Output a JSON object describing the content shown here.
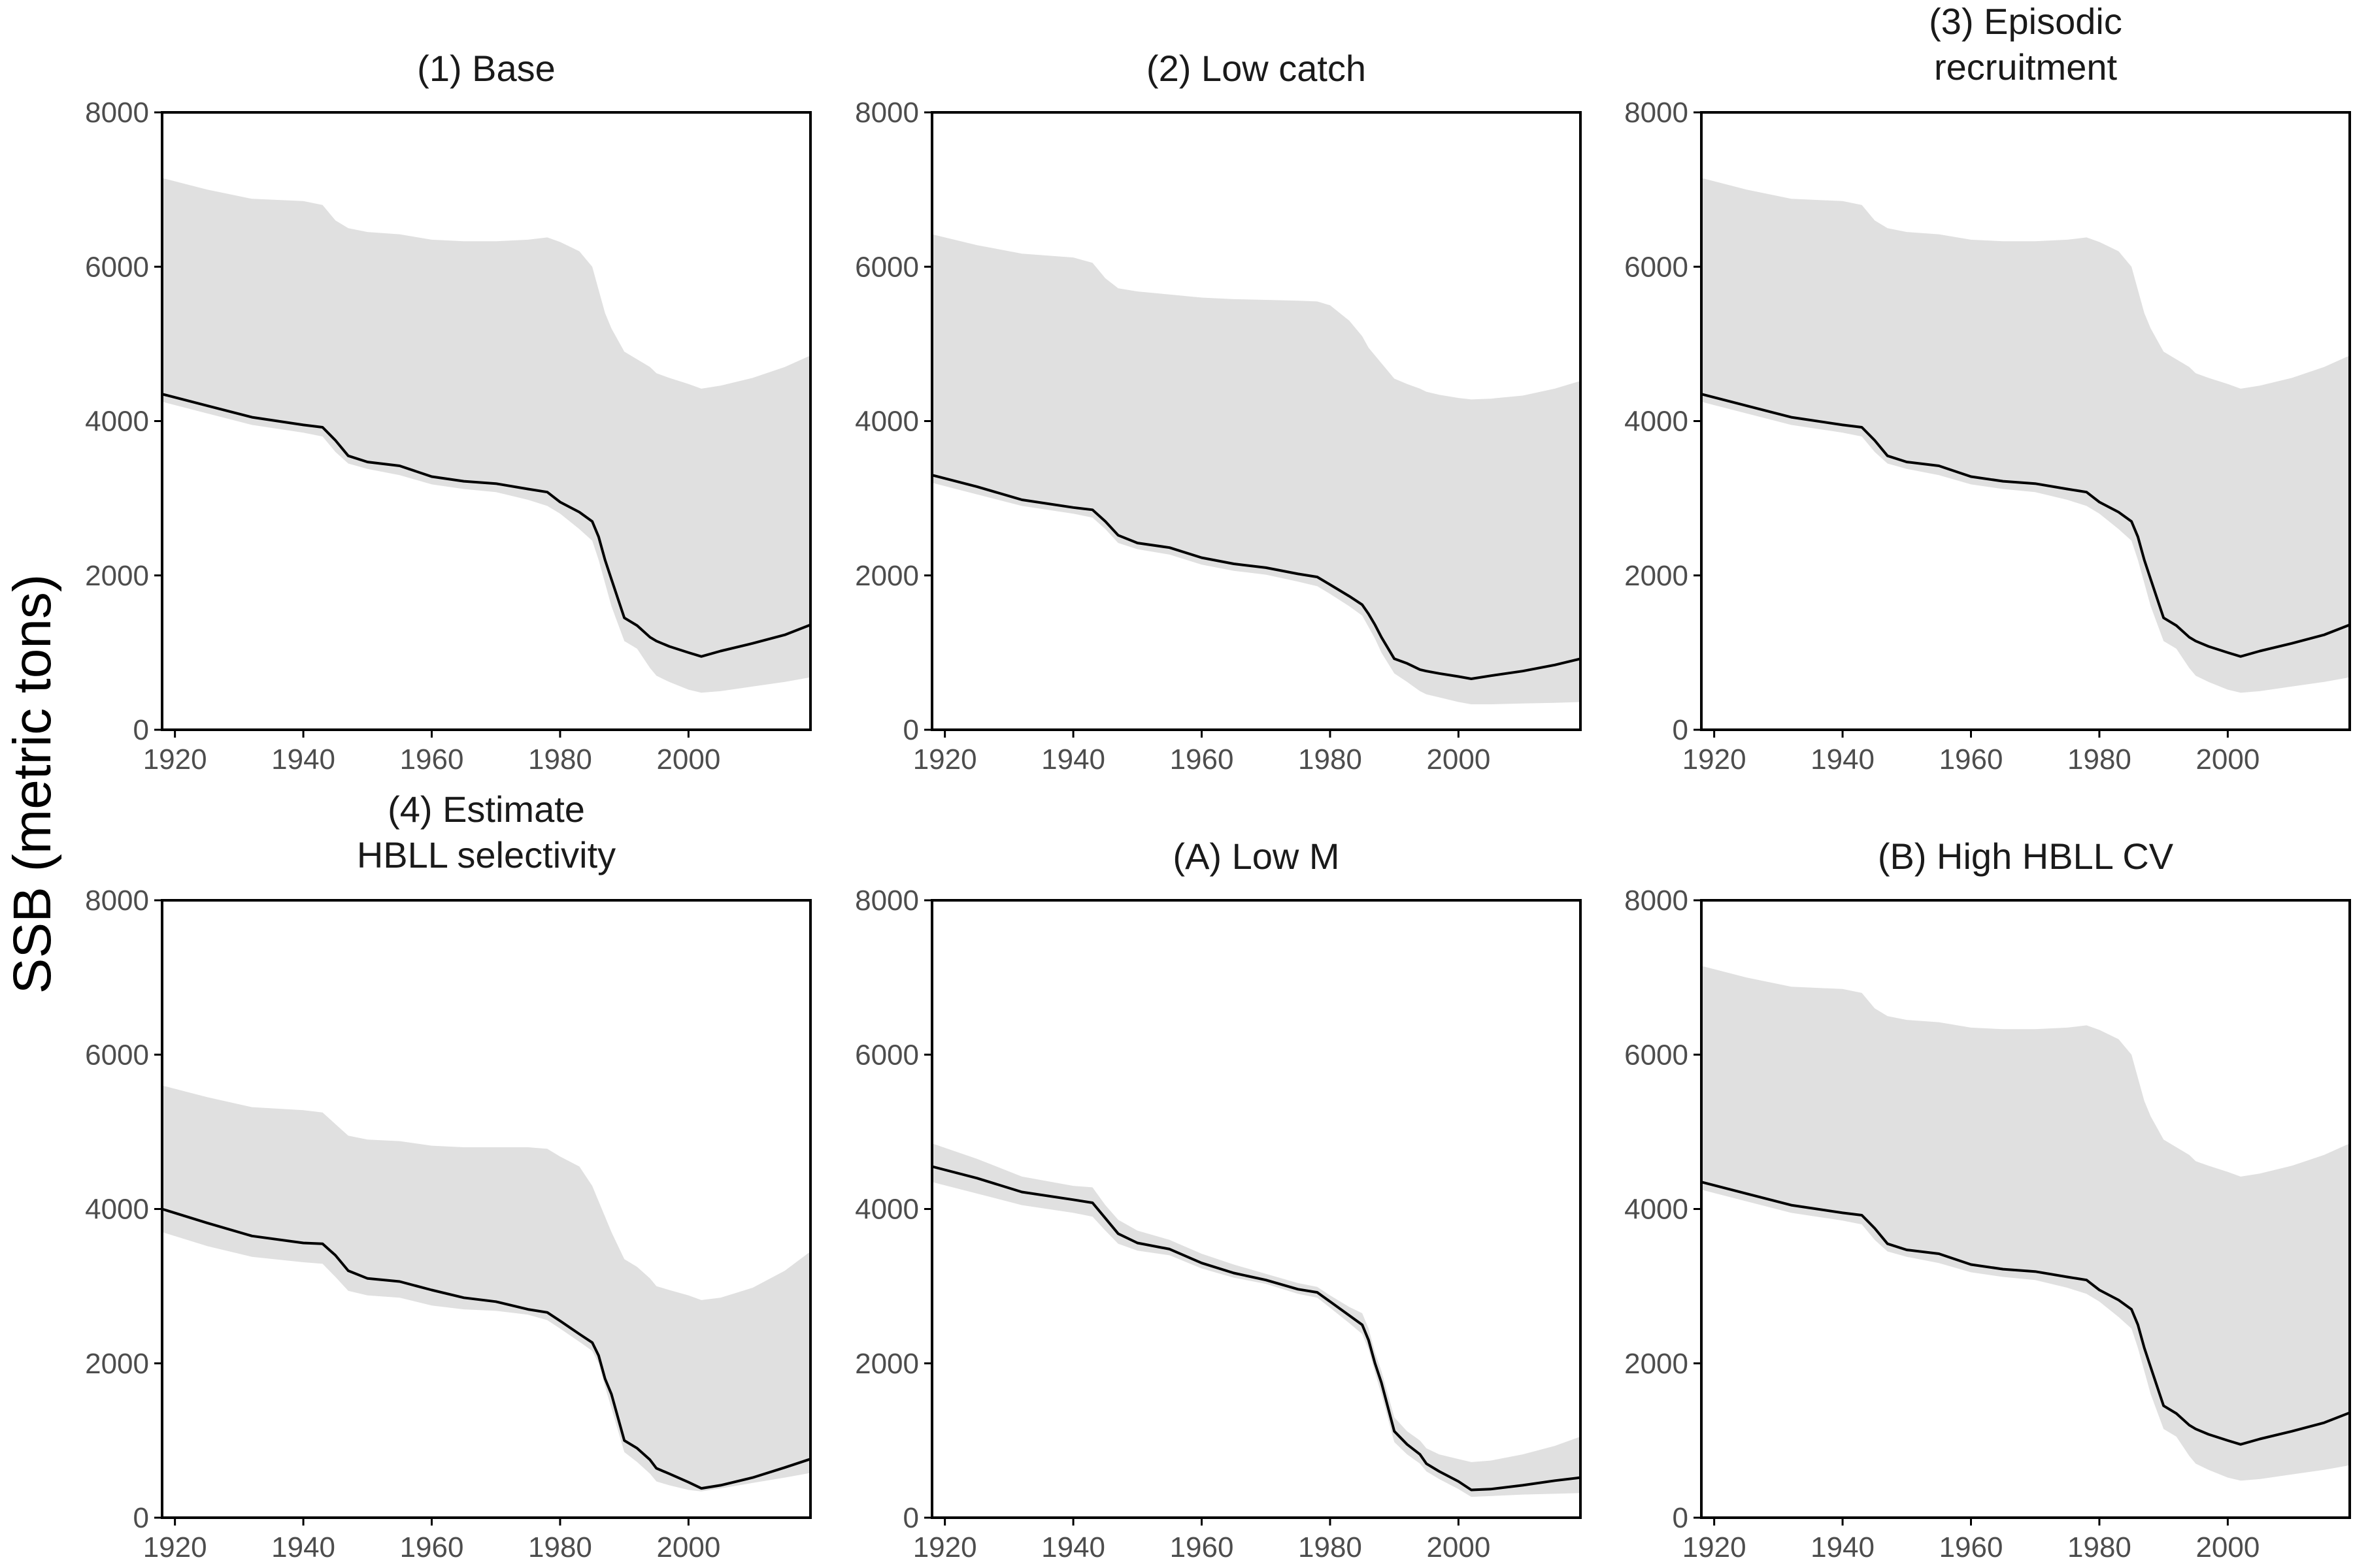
{
  "figure": {
    "ylabel": "SSB (metric tons)"
  },
  "chart_data": [
    {
      "type": "line",
      "title": [
        "(1) Base"
      ],
      "xlim": [
        1918,
        2019
      ],
      "ylim": [
        0,
        8000
      ],
      "xticks": [
        1920,
        1940,
        1960,
        1980,
        2000
      ],
      "yticks": [
        0,
        2000,
        4000,
        6000,
        8000
      ],
      "x": [
        1918,
        1925,
        1932,
        1940,
        1943,
        1945,
        1947,
        1950,
        1955,
        1960,
        1965,
        1970,
        1975,
        1978,
        1980,
        1983,
        1985,
        1986,
        1987,
        1988,
        1990,
        1992,
        1994,
        1995,
        1997,
        2000,
        2002,
        2005,
        2010,
        2015,
        2019
      ],
      "median": [
        4350,
        4200,
        4050,
        3950,
        3920,
        3750,
        3550,
        3470,
        3420,
        3280,
        3220,
        3190,
        3120,
        3080,
        2950,
        2820,
        2700,
        2500,
        2200,
        1950,
        1450,
        1350,
        1200,
        1150,
        1080,
        1000,
        950,
        1020,
        1120,
        1230,
        1360
      ],
      "lower": [
        4250,
        4100,
        3950,
        3850,
        3800,
        3600,
        3450,
        3380,
        3300,
        3180,
        3120,
        3080,
        2980,
        2900,
        2800,
        2600,
        2450,
        2200,
        1900,
        1600,
        1150,
        1050,
        800,
        700,
        620,
        520,
        480,
        500,
        560,
        620,
        680
      ],
      "upper": [
        7150,
        7000,
        6880,
        6850,
        6800,
        6600,
        6500,
        6450,
        6420,
        6350,
        6330,
        6330,
        6350,
        6380,
        6320,
        6200,
        6000,
        5700,
        5400,
        5200,
        4900,
        4800,
        4700,
        4620,
        4560,
        4480,
        4420,
        4460,
        4560,
        4700,
        4850
      ]
    },
    {
      "type": "line",
      "title": [
        "(2) Low catch"
      ],
      "xlim": [
        1918,
        2019
      ],
      "ylim": [
        0,
        8000
      ],
      "xticks": [
        1920,
        1940,
        1960,
        1980,
        2000
      ],
      "yticks": [
        0,
        2000,
        4000,
        6000,
        8000
      ],
      "x": [
        1918,
        1925,
        1932,
        1940,
        1943,
        1945,
        1947,
        1950,
        1955,
        1960,
        1965,
        1970,
        1975,
        1978,
        1980,
        1983,
        1985,
        1986,
        1987,
        1988,
        1990,
        1992,
        1994,
        1995,
        1997,
        2000,
        2002,
        2005,
        2010,
        2015,
        2019
      ],
      "median": [
        3300,
        3150,
        2980,
        2880,
        2850,
        2700,
        2520,
        2420,
        2360,
        2230,
        2150,
        2100,
        2020,
        1980,
        1880,
        1730,
        1620,
        1500,
        1360,
        1200,
        920,
        860,
        780,
        760,
        730,
        690,
        660,
        700,
        760,
        840,
        920
      ],
      "lower": [
        3200,
        3050,
        2900,
        2800,
        2750,
        2600,
        2420,
        2340,
        2270,
        2140,
        2060,
        2010,
        1920,
        1860,
        1760,
        1600,
        1480,
        1330,
        1180,
        1000,
        730,
        620,
        500,
        460,
        420,
        360,
        330,
        330,
        340,
        350,
        360
      ],
      "upper": [
        6420,
        6280,
        6170,
        6120,
        6050,
        5850,
        5720,
        5680,
        5640,
        5600,
        5580,
        5570,
        5560,
        5550,
        5500,
        5300,
        5100,
        4950,
        4850,
        4750,
        4550,
        4480,
        4420,
        4380,
        4340,
        4300,
        4280,
        4290,
        4330,
        4420,
        4520
      ]
    },
    {
      "type": "line",
      "title": [
        "(3) Episodic",
        "recruitment"
      ],
      "xlim": [
        1918,
        2019
      ],
      "ylim": [
        0,
        8000
      ],
      "xticks": [
        1920,
        1940,
        1960,
        1980,
        2000
      ],
      "yticks": [
        0,
        2000,
        4000,
        6000,
        8000
      ],
      "x": [
        1918,
        1925,
        1932,
        1940,
        1943,
        1945,
        1947,
        1950,
        1955,
        1960,
        1965,
        1970,
        1975,
        1978,
        1980,
        1983,
        1985,
        1986,
        1987,
        1988,
        1990,
        1992,
        1994,
        1995,
        1997,
        2000,
        2002,
        2005,
        2010,
        2015,
        2019
      ],
      "median": [
        4350,
        4200,
        4050,
        3950,
        3920,
        3750,
        3550,
        3470,
        3420,
        3280,
        3220,
        3190,
        3120,
        3080,
        2950,
        2820,
        2700,
        2500,
        2200,
        1950,
        1450,
        1350,
        1200,
        1150,
        1080,
        1000,
        950,
        1020,
        1120,
        1230,
        1360
      ],
      "lower": [
        4250,
        4100,
        3950,
        3850,
        3800,
        3600,
        3450,
        3380,
        3300,
        3180,
        3120,
        3080,
        2980,
        2900,
        2800,
        2600,
        2450,
        2200,
        1900,
        1600,
        1150,
        1050,
        800,
        700,
        620,
        520,
        480,
        500,
        560,
        620,
        680
      ],
      "upper": [
        7150,
        7000,
        6880,
        6850,
        6800,
        6600,
        6500,
        6450,
        6420,
        6350,
        6330,
        6330,
        6350,
        6380,
        6320,
        6200,
        6000,
        5700,
        5400,
        5200,
        4900,
        4800,
        4700,
        4620,
        4560,
        4480,
        4420,
        4460,
        4560,
        4700,
        4850
      ]
    },
    {
      "type": "line",
      "title": [
        "(4) Estimate",
        "HBLL selectivity"
      ],
      "xlim": [
        1918,
        2019
      ],
      "ylim": [
        0,
        8000
      ],
      "xticks": [
        1920,
        1940,
        1960,
        1980,
        2000
      ],
      "yticks": [
        0,
        2000,
        4000,
        6000,
        8000
      ],
      "x": [
        1918,
        1925,
        1932,
        1940,
        1943,
        1945,
        1947,
        1950,
        1955,
        1960,
        1965,
        1970,
        1975,
        1978,
        1980,
        1983,
        1985,
        1986,
        1987,
        1988,
        1990,
        1992,
        1994,
        1995,
        1997,
        2000,
        2002,
        2005,
        2010,
        2015,
        2019
      ],
      "median": [
        4000,
        3820,
        3650,
        3560,
        3550,
        3400,
        3200,
        3100,
        3060,
        2950,
        2850,
        2800,
        2700,
        2660,
        2550,
        2380,
        2270,
        2100,
        1800,
        1600,
        1000,
        900,
        750,
        640,
        570,
        460,
        380,
        420,
        520,
        650,
        760
      ],
      "lower": [
        3700,
        3520,
        3380,
        3310,
        3290,
        3120,
        2940,
        2880,
        2850,
        2750,
        2700,
        2680,
        2630,
        2560,
        2450,
        2280,
        2160,
        2000,
        1700,
        1420,
        850,
        720,
        570,
        470,
        420,
        360,
        340,
        380,
        450,
        520,
        580
      ],
      "upper": [
        5600,
        5450,
        5320,
        5280,
        5250,
        5100,
        4950,
        4900,
        4880,
        4820,
        4800,
        4800,
        4800,
        4780,
        4680,
        4550,
        4300,
        4100,
        3900,
        3700,
        3350,
        3250,
        3100,
        3000,
        2950,
        2880,
        2820,
        2850,
        2980,
        3200,
        3450
      ]
    },
    {
      "type": "line",
      "title": [
        "(A) Low M"
      ],
      "xlim": [
        1918,
        2019
      ],
      "ylim": [
        0,
        8000
      ],
      "xticks": [
        1920,
        1940,
        1960,
        1980,
        2000
      ],
      "yticks": [
        0,
        2000,
        4000,
        6000,
        8000
      ],
      "x": [
        1918,
        1925,
        1932,
        1940,
        1943,
        1945,
        1947,
        1950,
        1955,
        1960,
        1965,
        1970,
        1975,
        1978,
        1980,
        1983,
        1985,
        1986,
        1987,
        1988,
        1990,
        1992,
        1994,
        1995,
        1997,
        2000,
        2002,
        2005,
        2010,
        2015,
        2019
      ],
      "median": [
        4550,
        4400,
        4220,
        4120,
        4080,
        3880,
        3680,
        3560,
        3480,
        3300,
        3170,
        3080,
        2960,
        2920,
        2800,
        2620,
        2500,
        2300,
        2000,
        1750,
        1120,
        950,
        820,
        700,
        600,
        470,
        360,
        370,
        420,
        480,
        520
      ],
      "lower": [
        4350,
        4200,
        4050,
        3950,
        3900,
        3720,
        3550,
        3460,
        3400,
        3230,
        3110,
        3030,
        2900,
        2850,
        2720,
        2520,
        2380,
        2180,
        1880,
        1600,
        980,
        820,
        700,
        600,
        500,
        370,
        270,
        280,
        300,
        310,
        320
      ],
      "upper": [
        4850,
        4650,
        4420,
        4300,
        4280,
        4050,
        3860,
        3720,
        3600,
        3420,
        3280,
        3160,
        3040,
        2990,
        2880,
        2730,
        2650,
        2450,
        2140,
        1900,
        1300,
        1120,
        1000,
        900,
        820,
        760,
        720,
        740,
        820,
        930,
        1050
      ]
    },
    {
      "type": "line",
      "title": [
        "(B) High HBLL CV"
      ],
      "xlim": [
        1918,
        2019
      ],
      "ylim": [
        0,
        8000
      ],
      "xticks": [
        1920,
        1940,
        1960,
        1980,
        2000
      ],
      "yticks": [
        0,
        2000,
        4000,
        6000,
        8000
      ],
      "x": [
        1918,
        1925,
        1932,
        1940,
        1943,
        1945,
        1947,
        1950,
        1955,
        1960,
        1965,
        1970,
        1975,
        1978,
        1980,
        1983,
        1985,
        1986,
        1987,
        1988,
        1990,
        1992,
        1994,
        1995,
        1997,
        2000,
        2002,
        2005,
        2010,
        2015,
        2019
      ],
      "median": [
        4350,
        4200,
        4050,
        3950,
        3920,
        3750,
        3550,
        3470,
        3420,
        3280,
        3220,
        3190,
        3120,
        3080,
        2950,
        2820,
        2700,
        2500,
        2200,
        1950,
        1450,
        1350,
        1200,
        1150,
        1080,
        1000,
        950,
        1020,
        1120,
        1230,
        1360
      ],
      "lower": [
        4250,
        4100,
        3950,
        3850,
        3800,
        3600,
        3450,
        3380,
        3300,
        3180,
        3120,
        3080,
        2980,
        2900,
        2800,
        2600,
        2450,
        2200,
        1900,
        1600,
        1150,
        1050,
        800,
        700,
        620,
        520,
        480,
        500,
        560,
        620,
        680
      ],
      "upper": [
        7150,
        7000,
        6880,
        6850,
        6800,
        6600,
        6500,
        6450,
        6420,
        6350,
        6330,
        6330,
        6350,
        6380,
        6320,
        6200,
        6000,
        5700,
        5400,
        5200,
        4900,
        4800,
        4700,
        4620,
        4560,
        4480,
        4420,
        4460,
        4560,
        4700,
        4850
      ]
    }
  ]
}
